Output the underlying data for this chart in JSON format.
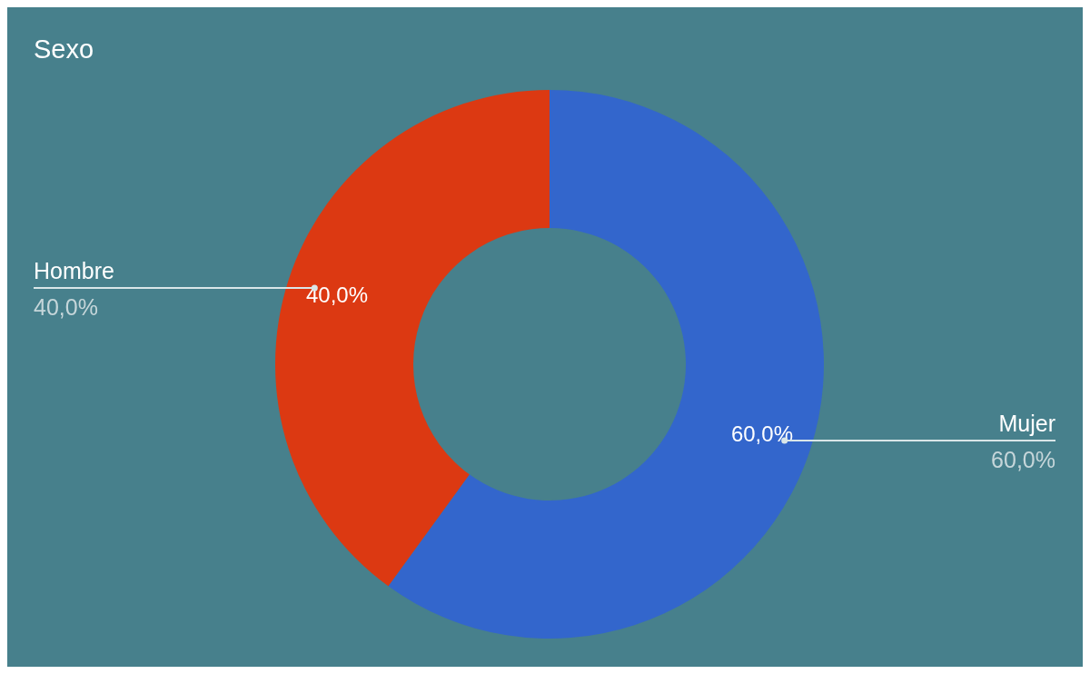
{
  "chart_data": {
    "type": "donut",
    "title": "Sexo",
    "categories": [
      "Mujer",
      "Hombre"
    ],
    "values": [
      60,
      40
    ],
    "colors": [
      "#3366cc",
      "#dc3912"
    ],
    "value_labels": [
      "60,0%",
      "40,0%"
    ]
  }
}
